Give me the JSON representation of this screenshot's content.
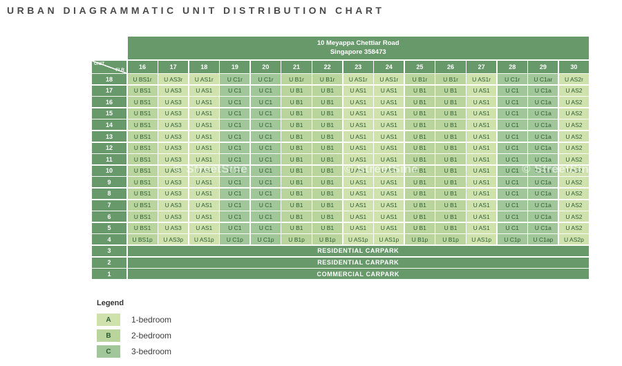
{
  "building": {
    "address_line1": "10 Meyappa Chettiar Road",
    "address_line2": "Singapore 358473"
  },
  "watermark": {
    "text": "© StreetSine"
  },
  "colors": {
    "header_green": "#68996b",
    "type_a": "#cfe2ae",
    "type_b": "#b9d59d",
    "type_c": "#a1c69a",
    "cell_text": "#2b5c33"
  },
  "legend": {
    "heading": "Legend",
    "items": [
      {
        "key": "A",
        "label": "1-bedroom",
        "type": "A",
        "color": "#cfe2ae"
      },
      {
        "key": "B",
        "label": "2-bedroom",
        "type": "B",
        "color": "#b9d59d"
      },
      {
        "key": "C",
        "label": "3-bedroom",
        "type": "C",
        "color": "#a1c69a"
      }
    ]
  },
  "chart_data": {
    "type": "table",
    "title": "URBAN DIAGRAMMATIC UNIT DISTRIBUTION CHART",
    "corner": {
      "unit": "UNIT",
      "flr": "FLR"
    },
    "columns": [
      "16",
      "17",
      "18",
      "19",
      "20",
      "21",
      "22",
      "23",
      "24",
      "25",
      "26",
      "27",
      "28",
      "29",
      "30"
    ],
    "column_types": [
      "B",
      "A",
      "A",
      "C",
      "C",
      "B",
      "B",
      "A",
      "A",
      "B",
      "B",
      "A",
      "C",
      "C",
      "A"
    ],
    "rows": [
      {
        "floor": "18",
        "cells": [
          "U BS1r",
          "U AS3r",
          "U AS1r",
          "U C1r",
          "U C1r",
          "U B1r",
          "U B1r",
          "U AS1r",
          "U AS1r",
          "U B1r",
          "U B1r",
          "U AS1r",
          "U C1r",
          "U C1ar",
          "U AS2r"
        ]
      },
      {
        "floor": "17",
        "cells": [
          "U BS1",
          "U AS3",
          "U AS1",
          "U C1",
          "U C1",
          "U B1",
          "U B1",
          "U AS1",
          "U AS1",
          "U B1",
          "U B1",
          "U AS1",
          "U C1",
          "U C1a",
          "U AS2"
        ]
      },
      {
        "floor": "16",
        "cells": [
          "U BS1",
          "U AS3",
          "U AS1",
          "U C1",
          "U C1",
          "U B1",
          "U B1",
          "U AS1",
          "U AS1",
          "U B1",
          "U B1",
          "U AS1",
          "U C1",
          "U C1a",
          "U AS2"
        ]
      },
      {
        "floor": "15",
        "cells": [
          "U BS1",
          "U AS3",
          "U AS1",
          "U C1",
          "U C1",
          "U B1",
          "U B1",
          "U AS1",
          "U AS1",
          "U B1",
          "U B1",
          "U AS1",
          "U C1",
          "U C1a",
          "U AS2"
        ]
      },
      {
        "floor": "14",
        "cells": [
          "U BS1",
          "U AS3",
          "U AS1",
          "U C1",
          "U C1",
          "U B1",
          "U B1",
          "U AS1",
          "U AS1",
          "U B1",
          "U B1",
          "U AS1",
          "U C1",
          "U C1a",
          "U AS2"
        ]
      },
      {
        "floor": "13",
        "cells": [
          "U BS1",
          "U AS3",
          "U AS1",
          "U C1",
          "U C1",
          "U B1",
          "U B1",
          "U AS1",
          "U AS1",
          "U B1",
          "U B1",
          "U AS1",
          "U C1",
          "U C1a",
          "U AS2"
        ]
      },
      {
        "floor": "12",
        "cells": [
          "U BS1",
          "U AS3",
          "U AS1",
          "U C1",
          "U C1",
          "U B1",
          "U B1",
          "U AS1",
          "U AS1",
          "U B1",
          "U B1",
          "U AS1",
          "U C1",
          "U C1a",
          "U AS2"
        ]
      },
      {
        "floor": "11",
        "cells": [
          "U BS1",
          "U AS3",
          "U AS1",
          "U C1",
          "U C1",
          "U B1",
          "U B1",
          "U AS1",
          "U AS1",
          "U B1",
          "U B1",
          "U AS1",
          "U C1",
          "U C1a",
          "U AS2"
        ]
      },
      {
        "floor": "10",
        "cells": [
          "U BS1",
          "U AS3",
          "U AS1",
          "U C1",
          "U C1",
          "U B1",
          "U B1",
          "U AS1",
          "U AS1",
          "U B1",
          "U B1",
          "U AS1",
          "U C1",
          "U C1a",
          "U AS2"
        ]
      },
      {
        "floor": "9",
        "cells": [
          "U BS1",
          "U AS3",
          "U AS1",
          "U C1",
          "U C1",
          "U B1",
          "U B1",
          "U AS1",
          "U AS1",
          "U B1",
          "U B1",
          "U AS1",
          "U C1",
          "U C1a",
          "U AS2"
        ]
      },
      {
        "floor": "8",
        "cells": [
          "U BS1",
          "U AS3",
          "U AS1",
          "U C1",
          "U C1",
          "U B1",
          "U B1",
          "U AS1",
          "U AS1",
          "U B1",
          "U B1",
          "U AS1",
          "U C1",
          "U C1a",
          "U AS2"
        ]
      },
      {
        "floor": "7",
        "cells": [
          "U BS1",
          "U AS3",
          "U AS1",
          "U C1",
          "U C1",
          "U B1",
          "U B1",
          "U AS1",
          "U AS1",
          "U B1",
          "U B1",
          "U AS1",
          "U C1",
          "U C1a",
          "U AS2"
        ]
      },
      {
        "floor": "6",
        "cells": [
          "U BS1",
          "U AS3",
          "U AS1",
          "U C1",
          "U C1",
          "U B1",
          "U B1",
          "U AS1",
          "U AS1",
          "U B1",
          "U B1",
          "U AS1",
          "U C1",
          "U C1a",
          "U AS2"
        ]
      },
      {
        "floor": "5",
        "cells": [
          "U BS1",
          "U AS3",
          "U AS1",
          "U C1",
          "U C1",
          "U B1",
          "U B1",
          "U AS1",
          "U AS1",
          "U B1",
          "U B1",
          "U AS1",
          "U C1",
          "U C1a",
          "U AS2"
        ]
      },
      {
        "floor": "4",
        "cells": [
          "U BS1p",
          "U AS3p",
          "U AS1p",
          "U C1p",
          "U C1p",
          "U B1p",
          "U B1p",
          "U AS1p",
          "U AS1p",
          "U B1p",
          "U B1p",
          "U AS1p",
          "U C1p",
          "U C1ap",
          "U AS2p"
        ]
      },
      {
        "floor": "3",
        "carpark": "RESIDENTIAL CARPARK"
      },
      {
        "floor": "2",
        "carpark": "RESIDENTIAL CARPARK"
      },
      {
        "floor": "1",
        "carpark": "COMMERCIAL CARPARK"
      }
    ]
  }
}
